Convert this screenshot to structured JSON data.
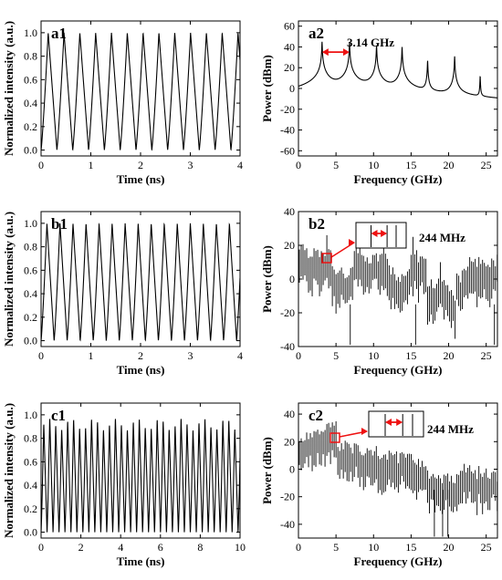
{
  "chart_data": [
    {
      "id": "a1",
      "type": "line",
      "panel_label": "a1",
      "xlabel": "Time (ns)",
      "ylabel": "Normalized intensity (a.u.)",
      "xlim": [
        0,
        4
      ],
      "ylim": [
        -0.05,
        1.1
      ],
      "xticks": [
        0,
        1,
        2,
        3,
        4
      ],
      "yticks": [
        0.0,
        0.2,
        0.4,
        0.6,
        0.8,
        1.0
      ],
      "xtick_labels": [
        "0",
        "1",
        "2",
        "3",
        "4"
      ],
      "ytick_labels": [
        "0.0",
        "0.2",
        "0.4",
        "0.6",
        "0.8",
        "1.0"
      ],
      "waveform": {
        "period_ns": 0.318,
        "min": 0.0,
        "max": 1.0,
        "peaks": 13
      },
      "grid": false
    },
    {
      "id": "a2",
      "type": "line",
      "panel_label": "a2",
      "xlabel": "Frequency (GHz)",
      "ylabel": "Power (dBm)",
      "xlim": [
        0,
        26.5
      ],
      "ylim": [
        -65,
        65
      ],
      "xticks": [
        0,
        5,
        10,
        15,
        20,
        25
      ],
      "yticks": [
        -60,
        -40,
        -20,
        0,
        20,
        40,
        60
      ],
      "xtick_labels": [
        "0",
        "5",
        "10",
        "15",
        "20",
        "25"
      ],
      "ytick_labels": [
        "-60",
        "-40",
        "-20",
        "0",
        "20",
        "40",
        "60"
      ],
      "peaks": [
        {
          "f": 3.14,
          "p": 45
        },
        {
          "f": 6.8,
          "p": 45
        },
        {
          "f": 10.4,
          "p": 42
        },
        {
          "f": 13.8,
          "p": 40
        },
        {
          "f": 17.2,
          "p": 27
        },
        {
          "f": 20.8,
          "p": 31
        },
        {
          "f": 24.2,
          "p": 12
        }
      ],
      "annotation": "3.14 GHz",
      "grid": false
    },
    {
      "id": "b1",
      "type": "line",
      "panel_label": "b1",
      "xlabel": "Time (ns)",
      "ylabel": "Normalized intensity (a.u.)",
      "xlim": [
        0,
        4
      ],
      "ylim": [
        -0.05,
        1.1
      ],
      "xticks": [
        0,
        1,
        2,
        3,
        4
      ],
      "yticks": [
        0.0,
        0.2,
        0.4,
        0.6,
        0.8,
        1.0
      ],
      "xtick_labels": [
        "0",
        "1",
        "2",
        "3",
        "4"
      ],
      "ytick_labels": [
        "0.0",
        "0.2",
        "0.4",
        "0.6",
        "0.8",
        "1.0"
      ],
      "waveform": {
        "period_ns": 0.262,
        "min": 0.0,
        "max": 1.0,
        "peaks": 15
      },
      "grid": false
    },
    {
      "id": "b2",
      "type": "line",
      "panel_label": "b2",
      "xlabel": "Frequency (GHz)",
      "ylabel": "Power (dBm)",
      "xlim": [
        0,
        26.5
      ],
      "ylim": [
        -40,
        40
      ],
      "xticks": [
        0,
        5,
        10,
        15,
        20,
        25
      ],
      "yticks": [
        -40,
        -20,
        0,
        20,
        40
      ],
      "xtick_labels": [
        "0",
        "5",
        "10",
        "15",
        "20",
        "25"
      ],
      "ytick_labels": [
        "-40",
        "-20",
        "0",
        "20",
        "40"
      ],
      "comb_spacing_ghz": 0.244,
      "major_peaks": [
        {
          "f": 3.8,
          "p": 26
        },
        {
          "f": 7.6,
          "p": 25
        },
        {
          "f": 11.4,
          "p": 22
        },
        {
          "f": 15.2,
          "p": 25
        },
        {
          "f": 19.0,
          "p": 10
        },
        {
          "f": 22.8,
          "p": 13
        }
      ],
      "annotation": "244 MHz",
      "grid": false
    },
    {
      "id": "c1",
      "type": "line",
      "panel_label": "c1",
      "xlabel": "Time (ns)",
      "ylabel": "Normalized intensity (a.u.)",
      "xlim": [
        0,
        10
      ],
      "ylim": [
        -0.05,
        1.1
      ],
      "xticks": [
        0,
        2,
        4,
        6,
        8,
        10
      ],
      "yticks": [
        0.0,
        0.2,
        0.4,
        0.6,
        0.8,
        1.0
      ],
      "xtick_labels": [
        "0",
        "2",
        "4",
        "6",
        "8",
        "10"
      ],
      "ytick_labels": [
        "0.0",
        "0.2",
        "0.4",
        "0.6",
        "0.8",
        "1.0"
      ],
      "waveform": {
        "period_ns": 0.3,
        "min": 0.0,
        "max": 0.97,
        "peaks": 33
      },
      "grid": false
    },
    {
      "id": "c2",
      "type": "line",
      "panel_label": "c2",
      "xlabel": "Frequency (GHz)",
      "ylabel": "Power (dBm)",
      "xlim": [
        0,
        26.5
      ],
      "ylim": [
        -50,
        48
      ],
      "xticks": [
        0,
        5,
        10,
        15,
        20,
        25
      ],
      "yticks": [
        -40,
        -20,
        0,
        20,
        40
      ],
      "xtick_labels": [
        "0",
        "5",
        "10",
        "15",
        "20",
        "25"
      ],
      "ytick_labels": [
        "-40",
        "-20",
        "0",
        "20",
        "40"
      ],
      "comb_spacing_ghz": 0.244,
      "annotation": "244 MHz",
      "grid": false
    }
  ]
}
